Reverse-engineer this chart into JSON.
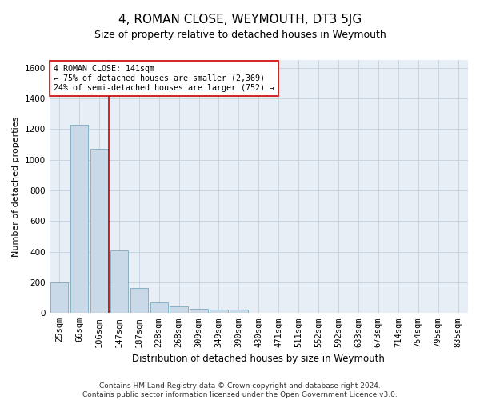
{
  "title": "4, ROMAN CLOSE, WEYMOUTH, DT3 5JG",
  "subtitle": "Size of property relative to detached houses in Weymouth",
  "xlabel": "Distribution of detached houses by size in Weymouth",
  "ylabel": "Number of detached properties",
  "categories": [
    "25sqm",
    "66sqm",
    "106sqm",
    "147sqm",
    "187sqm",
    "228sqm",
    "268sqm",
    "309sqm",
    "349sqm",
    "390sqm",
    "430sqm",
    "471sqm",
    "511sqm",
    "552sqm",
    "592sqm",
    "633sqm",
    "673sqm",
    "714sqm",
    "754sqm",
    "795sqm",
    "835sqm"
  ],
  "values": [
    200,
    1230,
    1070,
    410,
    165,
    70,
    45,
    30,
    25,
    20,
    0,
    0,
    0,
    0,
    0,
    0,
    0,
    0,
    0,
    0,
    0
  ],
  "bar_color": "#c9d9e8",
  "bar_edgecolor": "#7aaabf",
  "bar_linewidth": 0.6,
  "vline_x": 2.5,
  "vline_color": "#cc0000",
  "vline_linewidth": 1.2,
  "annotation_text": "4 ROMAN CLOSE: 141sqm\n← 75% of detached houses are smaller (2,369)\n24% of semi-detached houses are larger (752) →",
  "annotation_box_edgecolor": "#cc0000",
  "annotation_box_facecolor": "#ffffff",
  "ylim": [
    0,
    1650
  ],
  "yticks": [
    0,
    200,
    400,
    600,
    800,
    1000,
    1200,
    1400,
    1600
  ],
  "grid_color": "#c8d4e0",
  "plot_background": "#e8eef5",
  "footer": "Contains HM Land Registry data © Crown copyright and database right 2024.\nContains public sector information licensed under the Open Government Licence v3.0.",
  "title_fontsize": 11,
  "subtitle_fontsize": 9,
  "xlabel_fontsize": 8.5,
  "ylabel_fontsize": 8,
  "tick_fontsize": 7.5,
  "footer_fontsize": 6.5
}
